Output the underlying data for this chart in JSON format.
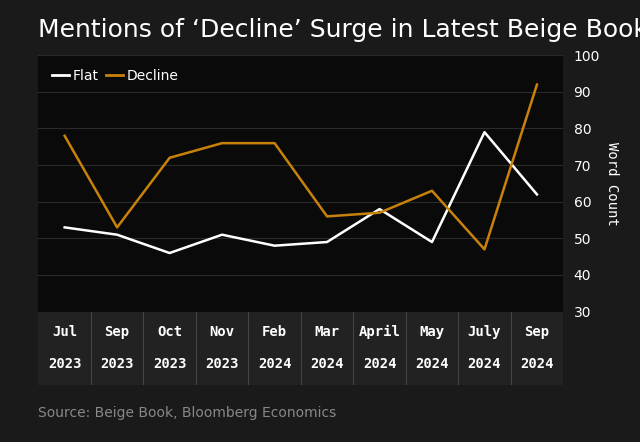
{
  "title": "Mentions of ‘Decline’ Surge in Latest Beige Book",
  "source": "Source: Beige Book, Bloomberg Economics",
  "x_labels_line1": [
    "Jul",
    "Sep",
    "Oct",
    "Nov",
    "Feb",
    "Mar",
    "April",
    "May",
    "July",
    "Sep"
  ],
  "x_labels_line2": [
    "2023",
    "2023",
    "2023",
    "2023",
    "2024",
    "2024",
    "2024",
    "2024",
    "2024",
    "2024"
  ],
  "flat_values": [
    53,
    51,
    46,
    51,
    48,
    49,
    58,
    49,
    79,
    62
  ],
  "decline_values": [
    78,
    53,
    72,
    76,
    76,
    56,
    57,
    63,
    47,
    92
  ],
  "flat_color": "#ffffff",
  "decline_color": "#c8820a",
  "bg_color": "#1a1a1a",
  "plot_bg_color": "#0a0a0a",
  "xtick_bg_color": "#222222",
  "grid_color": "#2a2a2a",
  "text_color": "#ffffff",
  "source_color": "#888888",
  "ylabel": "Word Count",
  "ylim": [
    30,
    100
  ],
  "yticks": [
    30,
    40,
    50,
    60,
    70,
    80,
    90,
    100
  ],
  "title_fontsize": 18,
  "axis_fontsize": 10,
  "legend_fontsize": 10,
  "source_fontsize": 10
}
